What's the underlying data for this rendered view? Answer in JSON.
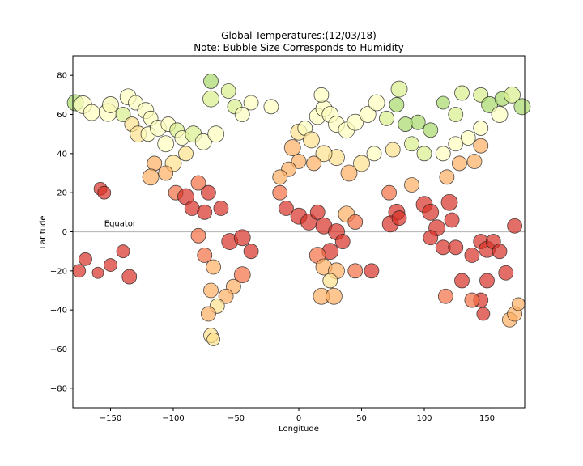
{
  "chart_data": {
    "type": "scatter",
    "title_line1": "Global Temperatures:(12/03/18)",
    "title_line2": "Note:  Bubble Size Corresponds to Humidity",
    "xlabel": "Longitude",
    "ylabel": "Latitude",
    "xlim": [
      -180,
      180
    ],
    "ylim": [
      -90,
      90
    ],
    "xticks": [
      -150,
      -100,
      -50,
      0,
      50,
      100,
      150
    ],
    "yticks": [
      -80,
      -60,
      -40,
      -20,
      0,
      20,
      40,
      60,
      80
    ],
    "grid": false,
    "annotation": {
      "text": "Equator",
      "x": -155,
      "y": 3
    },
    "reference_line": {
      "y": 0,
      "color": "#bbbbbb"
    },
    "color_scale": "temperature (green = cold, yellow = mild, red = hot)",
    "bubbles": [
      {
        "lon": -178,
        "lat": 66,
        "size": 10,
        "color": "#a6d96a"
      },
      {
        "lon": -172,
        "lat": 65,
        "size": 11,
        "color": "#ffffbf"
      },
      {
        "lon": -165,
        "lat": 61,
        "size": 10,
        "color": "#ffffbf"
      },
      {
        "lon": -152,
        "lat": 61,
        "size": 11,
        "color": "#ffffbf"
      },
      {
        "lon": -150,
        "lat": 65,
        "size": 10,
        "color": "#f7f7b0"
      },
      {
        "lon": -136,
        "lat": 69,
        "size": 10,
        "color": "#ffffbf"
      },
      {
        "lon": -130,
        "lat": 66,
        "size": 9,
        "color": "#fefec0"
      },
      {
        "lon": -140,
        "lat": 60,
        "size": 9,
        "color": "#d9ef8b"
      },
      {
        "lon": -122,
        "lat": 62,
        "size": 10,
        "color": "#fefec0"
      },
      {
        "lon": -118,
        "lat": 58,
        "size": 9,
        "color": "#fdfdbb"
      },
      {
        "lon": -133,
        "lat": 55,
        "size": 9,
        "color": "#fee08b"
      },
      {
        "lon": -128,
        "lat": 50,
        "size": 10,
        "color": "#fee08b"
      },
      {
        "lon": -120,
        "lat": 50,
        "size": 9,
        "color": "#ffffbf"
      },
      {
        "lon": -112,
        "lat": 53,
        "size": 10,
        "color": "#fefec0"
      },
      {
        "lon": -104,
        "lat": 55,
        "size": 9,
        "color": "#ffffbf"
      },
      {
        "lon": -97,
        "lat": 52,
        "size": 9,
        "color": "#d9ef8b"
      },
      {
        "lon": -106,
        "lat": 45,
        "size": 10,
        "color": "#ffffbf"
      },
      {
        "lon": -93,
        "lat": 48,
        "size": 9,
        "color": "#fefec0"
      },
      {
        "lon": -84,
        "lat": 50,
        "size": 10,
        "color": "#d9ef8b"
      },
      {
        "lon": -76,
        "lat": 46,
        "size": 10,
        "color": "#fefec0"
      },
      {
        "lon": -66,
        "lat": 50,
        "size": 10,
        "color": "#ffffbf"
      },
      {
        "lon": -90,
        "lat": 40,
        "size": 9,
        "color": "#fee08b"
      },
      {
        "lon": -100,
        "lat": 35,
        "size": 10,
        "color": "#fee08b"
      },
      {
        "lon": -115,
        "lat": 35,
        "size": 9,
        "color": "#fdae61"
      },
      {
        "lon": -118,
        "lat": 28,
        "size": 10,
        "color": "#fdae61"
      },
      {
        "lon": -106,
        "lat": 30,
        "size": 9,
        "color": "#fdae61"
      },
      {
        "lon": -98,
        "lat": 20,
        "size": 9,
        "color": "#f46d43"
      },
      {
        "lon": -90,
        "lat": 18,
        "size": 10,
        "color": "#d73027"
      },
      {
        "lon": -80,
        "lat": 25,
        "size": 9,
        "color": "#f46d43"
      },
      {
        "lon": -72,
        "lat": 20,
        "size": 9,
        "color": "#d73027"
      },
      {
        "lon": -85,
        "lat": 12,
        "size": 9,
        "color": "#d73027"
      },
      {
        "lon": -75,
        "lat": 10,
        "size": 9,
        "color": "#d73027"
      },
      {
        "lon": -62,
        "lat": 12,
        "size": 9,
        "color": "#d73027"
      },
      {
        "lon": -70,
        "lat": 77,
        "size": 9,
        "color": "#a6d96a"
      },
      {
        "lon": -70,
        "lat": 68,
        "size": 10,
        "color": "#d9ef8b"
      },
      {
        "lon": -56,
        "lat": 72,
        "size": 9,
        "color": "#d9ef8b"
      },
      {
        "lon": -51,
        "lat": 64,
        "size": 9,
        "color": "#d9ef8b"
      },
      {
        "lon": -45,
        "lat": 60,
        "size": 9,
        "color": "#fefec0"
      },
      {
        "lon": -38,
        "lat": 66,
        "size": 9,
        "color": "#ffffbf"
      },
      {
        "lon": -22,
        "lat": 64,
        "size": 9,
        "color": "#ffffbf"
      },
      {
        "lon": -158,
        "lat": 22,
        "size": 8,
        "color": "#d73027"
      },
      {
        "lon": -155,
        "lat": 20,
        "size": 8,
        "color": "#d73027"
      },
      {
        "lon": -170,
        "lat": -14,
        "size": 8,
        "color": "#d73027"
      },
      {
        "lon": -175,
        "lat": -20,
        "size": 8,
        "color": "#d73027"
      },
      {
        "lon": -160,
        "lat": -21,
        "size": 7,
        "color": "#d73027"
      },
      {
        "lon": -150,
        "lat": -17,
        "size": 8,
        "color": "#d73027"
      },
      {
        "lon": -140,
        "lat": -10,
        "size": 8,
        "color": "#d73027"
      },
      {
        "lon": -135,
        "lat": -23,
        "size": 9,
        "color": "#d73027"
      },
      {
        "lon": -80,
        "lat": -2,
        "size": 9,
        "color": "#f46d43"
      },
      {
        "lon": -75,
        "lat": -12,
        "size": 9,
        "color": "#f46d43"
      },
      {
        "lon": -68,
        "lat": -18,
        "size": 9,
        "color": "#fdae61"
      },
      {
        "lon": -55,
        "lat": -5,
        "size": 10,
        "color": "#d73027"
      },
      {
        "lon": -45,
        "lat": -3,
        "size": 10,
        "color": "#d73027"
      },
      {
        "lon": -38,
        "lat": -10,
        "size": 9,
        "color": "#d73027"
      },
      {
        "lon": -45,
        "lat": -22,
        "size": 10,
        "color": "#f46d43"
      },
      {
        "lon": -52,
        "lat": -28,
        "size": 9,
        "color": "#fdae61"
      },
      {
        "lon": -58,
        "lat": -33,
        "size": 9,
        "color": "#fdae61"
      },
      {
        "lon": -65,
        "lat": -38,
        "size": 9,
        "color": "#fee08b"
      },
      {
        "lon": -70,
        "lat": -30,
        "size": 9,
        "color": "#fdae61"
      },
      {
        "lon": -72,
        "lat": -42,
        "size": 9,
        "color": "#fdae61"
      },
      {
        "lon": -70,
        "lat": -53,
        "size": 9,
        "color": "#fee08b"
      },
      {
        "lon": -68,
        "lat": -55,
        "size": 8,
        "color": "#fee08b"
      },
      {
        "lon": -5,
        "lat": 43,
        "size": 10,
        "color": "#fdae61"
      },
      {
        "lon": 0,
        "lat": 51,
        "size": 10,
        "color": "#fee08b"
      },
      {
        "lon": 5,
        "lat": 53,
        "size": 9,
        "color": "#fefec0"
      },
      {
        "lon": 10,
        "lat": 47,
        "size": 10,
        "color": "#fee08b"
      },
      {
        "lon": 15,
        "lat": 59,
        "size": 10,
        "color": "#ffffbf"
      },
      {
        "lon": 20,
        "lat": 63,
        "size": 10,
        "color": "#ffffbf"
      },
      {
        "lon": 25,
        "lat": 60,
        "size": 10,
        "color": "#ffffbf"
      },
      {
        "lon": 18,
        "lat": 70,
        "size": 9,
        "color": "#ffffbf"
      },
      {
        "lon": 30,
        "lat": 55,
        "size": 10,
        "color": "#ffffbf"
      },
      {
        "lon": 38,
        "lat": 52,
        "size": 10,
        "color": "#ffffbf"
      },
      {
        "lon": 45,
        "lat": 56,
        "size": 10,
        "color": "#ffffbf"
      },
      {
        "lon": 55,
        "lat": 60,
        "size": 10,
        "color": "#ffffbf"
      },
      {
        "lon": 62,
        "lat": 66,
        "size": 10,
        "color": "#ffffbf"
      },
      {
        "lon": 70,
        "lat": 58,
        "size": 9,
        "color": "#d9ef8b"
      },
      {
        "lon": 80,
        "lat": 73,
        "size": 10,
        "color": "#d9ef8b"
      },
      {
        "lon": 78,
        "lat": 65,
        "size": 9,
        "color": "#a6d96a"
      },
      {
        "lon": 85,
        "lat": 55,
        "size": 9,
        "color": "#a6d96a"
      },
      {
        "lon": 95,
        "lat": 56,
        "size": 9,
        "color": "#a6d96a"
      },
      {
        "lon": 105,
        "lat": 52,
        "size": 9,
        "color": "#a6d96a"
      },
      {
        "lon": 115,
        "lat": 66,
        "size": 8,
        "color": "#a6d96a"
      },
      {
        "lon": 125,
        "lat": 60,
        "size": 9,
        "color": "#d9ef8b"
      },
      {
        "lon": 130,
        "lat": 71,
        "size": 9,
        "color": "#d9ef8b"
      },
      {
        "lon": 145,
        "lat": 70,
        "size": 9,
        "color": "#d9ef8b"
      },
      {
        "lon": 152,
        "lat": 65,
        "size": 10,
        "color": "#a6d96a"
      },
      {
        "lon": 162,
        "lat": 68,
        "size": 9,
        "color": "#a6d96a"
      },
      {
        "lon": 170,
        "lat": 70,
        "size": 10,
        "color": "#d9ef8b"
      },
      {
        "lon": 178,
        "lat": 64,
        "size": 10,
        "color": "#a6d96a"
      },
      {
        "lon": 160,
        "lat": 60,
        "size": 10,
        "color": "#fefec0"
      },
      {
        "lon": 145,
        "lat": 53,
        "size": 9,
        "color": "#ffffbf"
      },
      {
        "lon": 135,
        "lat": 48,
        "size": 9,
        "color": "#ffffbf"
      },
      {
        "lon": 125,
        "lat": 45,
        "size": 9,
        "color": "#ffffbf"
      },
      {
        "lon": 115,
        "lat": 40,
        "size": 9,
        "color": "#ffffbf"
      },
      {
        "lon": 100,
        "lat": 40,
        "size": 9,
        "color": "#d9ef8b"
      },
      {
        "lon": 90,
        "lat": 45,
        "size": 9,
        "color": "#d9ef8b"
      },
      {
        "lon": 75,
        "lat": 42,
        "size": 9,
        "color": "#fee08b"
      },
      {
        "lon": 60,
        "lat": 40,
        "size": 9,
        "color": "#ffffbf"
      },
      {
        "lon": 50,
        "lat": 35,
        "size": 10,
        "color": "#fee08b"
      },
      {
        "lon": 40,
        "lat": 30,
        "size": 10,
        "color": "#fdae61"
      },
      {
        "lon": 30,
        "lat": 38,
        "size": 10,
        "color": "#fee08b"
      },
      {
        "lon": 20,
        "lat": 40,
        "size": 10,
        "color": "#fee08b"
      },
      {
        "lon": 12,
        "lat": 35,
        "size": 9,
        "color": "#fdae61"
      },
      {
        "lon": 0,
        "lat": 36,
        "size": 9,
        "color": "#fdae61"
      },
      {
        "lon": -8,
        "lat": 32,
        "size": 9,
        "color": "#fdae61"
      },
      {
        "lon": -15,
        "lat": 28,
        "size": 9,
        "color": "#fdae61"
      },
      {
        "lon": -15,
        "lat": 20,
        "size": 9,
        "color": "#f46d43"
      },
      {
        "lon": -10,
        "lat": 12,
        "size": 9,
        "color": "#d73027"
      },
      {
        "lon": 0,
        "lat": 8,
        "size": 10,
        "color": "#d73027"
      },
      {
        "lon": 8,
        "lat": 5,
        "size": 10,
        "color": "#d73027"
      },
      {
        "lon": 15,
        "lat": 10,
        "size": 9,
        "color": "#d73027"
      },
      {
        "lon": 20,
        "lat": 3,
        "size": 10,
        "color": "#d73027"
      },
      {
        "lon": 30,
        "lat": 0,
        "size": 10,
        "color": "#d73027"
      },
      {
        "lon": 38,
        "lat": 9,
        "size": 10,
        "color": "#fdae61"
      },
      {
        "lon": 45,
        "lat": 5,
        "size": 9,
        "color": "#f46d43"
      },
      {
        "lon": 35,
        "lat": -5,
        "size": 9,
        "color": "#d73027"
      },
      {
        "lon": 25,
        "lat": -10,
        "size": 10,
        "color": "#d73027"
      },
      {
        "lon": 15,
        "lat": -12,
        "size": 10,
        "color": "#f46d43"
      },
      {
        "lon": 20,
        "lat": -18,
        "size": 10,
        "color": "#fdae61"
      },
      {
        "lon": 30,
        "lat": -20,
        "size": 10,
        "color": "#fdae61"
      },
      {
        "lon": 25,
        "lat": -25,
        "size": 9,
        "color": "#fee08b"
      },
      {
        "lon": 18,
        "lat": -33,
        "size": 10,
        "color": "#fdae61"
      },
      {
        "lon": 28,
        "lat": -33,
        "size": 10,
        "color": "#fdae61"
      },
      {
        "lon": 45,
        "lat": -20,
        "size": 9,
        "color": "#f46d43"
      },
      {
        "lon": 58,
        "lat": -20,
        "size": 9,
        "color": "#d73027"
      },
      {
        "lon": 72,
        "lat": 20,
        "size": 9,
        "color": "#f46d43"
      },
      {
        "lon": 78,
        "lat": 10,
        "size": 10,
        "color": "#d73027"
      },
      {
        "lon": 73,
        "lat": 4,
        "size": 10,
        "color": "#d73027"
      },
      {
        "lon": 80,
        "lat": 7,
        "size": 9,
        "color": "#d73027"
      },
      {
        "lon": 90,
        "lat": 24,
        "size": 9,
        "color": "#fdae61"
      },
      {
        "lon": 100,
        "lat": 14,
        "size": 10,
        "color": "#d73027"
      },
      {
        "lon": 105,
        "lat": 10,
        "size": 10,
        "color": "#d73027"
      },
      {
        "lon": 110,
        "lat": 2,
        "size": 10,
        "color": "#d73027"
      },
      {
        "lon": 120,
        "lat": 15,
        "size": 10,
        "color": "#d73027"
      },
      {
        "lon": 122,
        "lat": 6,
        "size": 9,
        "color": "#d73027"
      },
      {
        "lon": 115,
        "lat": -8,
        "size": 9,
        "color": "#d73027"
      },
      {
        "lon": 125,
        "lat": -8,
        "size": 9,
        "color": "#d73027"
      },
      {
        "lon": 105,
        "lat": -3,
        "size": 9,
        "color": "#d73027"
      },
      {
        "lon": 118,
        "lat": 28,
        "size": 9,
        "color": "#fdae61"
      },
      {
        "lon": 128,
        "lat": 35,
        "size": 9,
        "color": "#fdae61"
      },
      {
        "lon": 140,
        "lat": 36,
        "size": 9,
        "color": "#fdae61"
      },
      {
        "lon": 145,
        "lat": 44,
        "size": 9,
        "color": "#fdae61"
      },
      {
        "lon": 138,
        "lat": -12,
        "size": 9,
        "color": "#d73027"
      },
      {
        "lon": 145,
        "lat": -5,
        "size": 9,
        "color": "#d73027"
      },
      {
        "lon": 150,
        "lat": -9,
        "size": 10,
        "color": "#d73027"
      },
      {
        "lon": 155,
        "lat": -5,
        "size": 9,
        "color": "#d73027"
      },
      {
        "lon": 160,
        "lat": -10,
        "size": 9,
        "color": "#d73027"
      },
      {
        "lon": 165,
        "lat": -21,
        "size": 9,
        "color": "#d73027"
      },
      {
        "lon": 172,
        "lat": 3,
        "size": 9,
        "color": "#d73027"
      },
      {
        "lon": 150,
        "lat": -25,
        "size": 9,
        "color": "#d73027"
      },
      {
        "lon": 145,
        "lat": -35,
        "size": 9,
        "color": "#d73027"
      },
      {
        "lon": 138,
        "lat": -35,
        "size": 9,
        "color": "#f46d43"
      },
      {
        "lon": 130,
        "lat": -25,
        "size": 9,
        "color": "#d73027"
      },
      {
        "lon": 117,
        "lat": -33,
        "size": 9,
        "color": "#f46d43"
      },
      {
        "lon": 147,
        "lat": -42,
        "size": 8,
        "color": "#d73027"
      },
      {
        "lon": 168,
        "lat": -45,
        "size": 9,
        "color": "#fdae61"
      },
      {
        "lon": 172,
        "lat": -42,
        "size": 9,
        "color": "#fdae61"
      },
      {
        "lon": 175,
        "lat": -37,
        "size": 8,
        "color": "#fdae61"
      }
    ]
  }
}
